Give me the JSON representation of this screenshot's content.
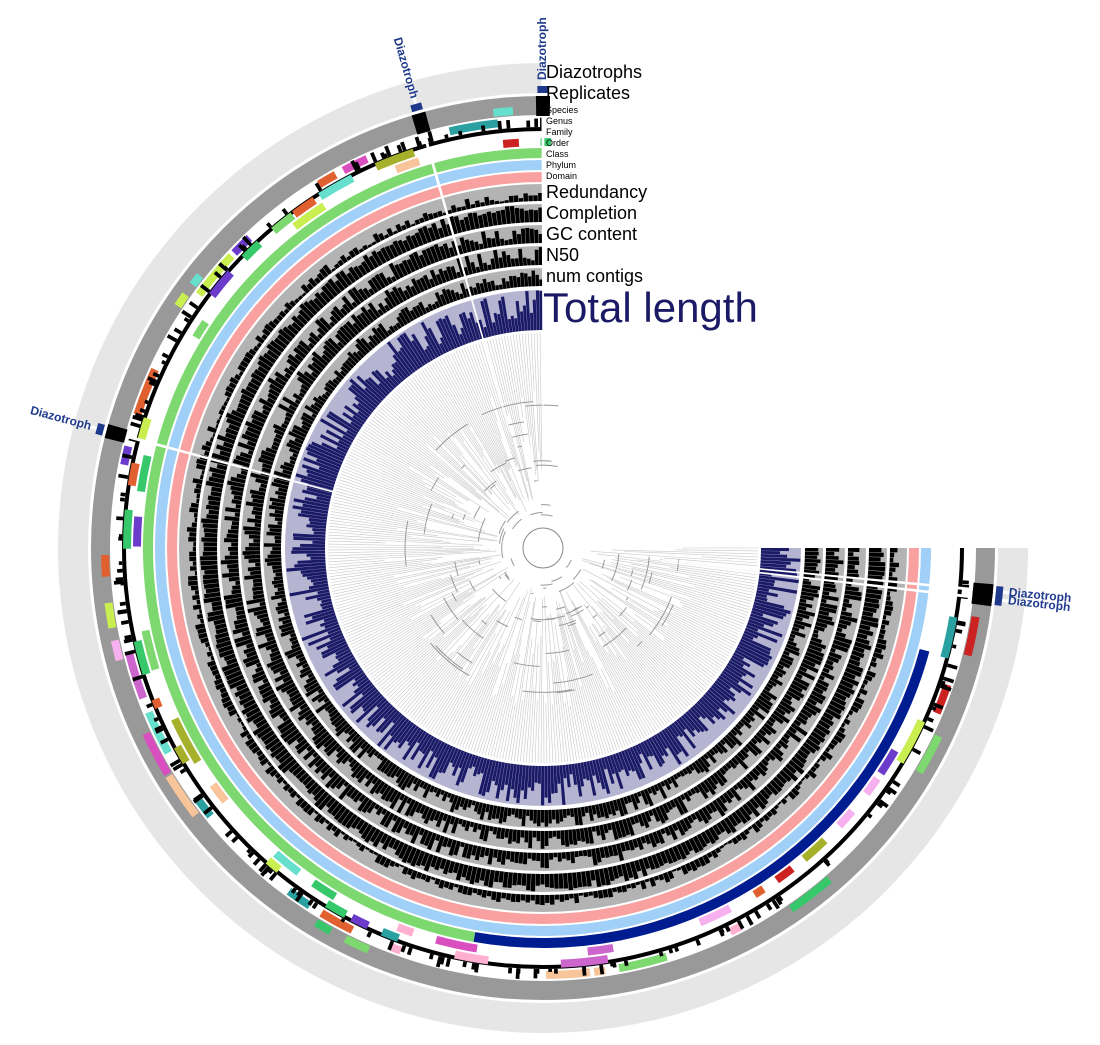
{
  "figure": {
    "title": "Total length",
    "colors": {
      "total_length": "#1a1a66",
      "total_length_bg": "#b5b5d2",
      "bars": "#000000",
      "track_bg": "#b3b3b3",
      "replicates": "#999999",
      "diazotroph_ring": "#e6e6e6",
      "diazotroph_marker": "#000000",
      "diazotroph_label": "#1f3a8c",
      "domain": "#f9a0a0",
      "phylum": "#a0cff7",
      "class_a": "#7dd870",
      "class_b": "#001c91"
    },
    "layers": [
      {
        "name": "Diazotrophs",
        "size": "large"
      },
      {
        "name": "Replicates",
        "size": "large"
      },
      {
        "name": "Species",
        "size": "small"
      },
      {
        "name": "Genus",
        "size": "small"
      },
      {
        "name": "Family",
        "size": "small"
      },
      {
        "name": "Order",
        "size": "small"
      },
      {
        "name": "Class",
        "size": "small"
      },
      {
        "name": "Phylum",
        "size": "small"
      },
      {
        "name": "Domain",
        "size": "small"
      },
      {
        "name": "Redundancy",
        "size": "large"
      },
      {
        "name": "Completion",
        "size": "large"
      },
      {
        "name": "GC content",
        "size": "large"
      },
      {
        "name": "N50",
        "size": "large"
      },
      {
        "name": "num contigs",
        "size": "large"
      }
    ],
    "diazotroph_markers": [
      {
        "label": "Diazotroph",
        "angle_deg": 195
      },
      {
        "label": "Diazotroph",
        "angle_deg": 254
      },
      {
        "label": "Diazotroph",
        "angle_deg": 270
      },
      {
        "label": "Diazotroph",
        "angle_deg": 5.5
      },
      {
        "label": "Diazotroph",
        "angle_deg": 6.5
      }
    ]
  }
}
